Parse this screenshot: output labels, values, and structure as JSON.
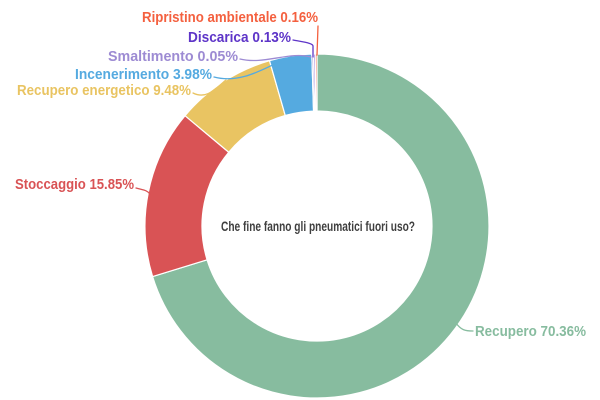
{
  "chart_data": {
    "type": "pie",
    "subtype": "donut",
    "title": "Che fine fanno gli pneumatici fuori uso?",
    "center_text": "Che fine fanno gli pneumatici fuori uso?",
    "center_text_color": "#3f3f3f",
    "background_color": "#ffffff",
    "direction": "clockwise",
    "start_angle_deg": 0,
    "legend_position": "outside-callout-labels",
    "slices": [
      {
        "label": "Recupero",
        "value": 70.36,
        "display": "Recupero 70.36%",
        "color": "#87BC9F"
      },
      {
        "label": "Stoccaggio",
        "value": 15.85,
        "display": "Stoccaggio 15.85%",
        "color": "#D95355"
      },
      {
        "label": "Recupero energetico",
        "value": 9.48,
        "display": "Recupero energetico 9.48%",
        "color": "#E9C462"
      },
      {
        "label": "Incenerimento",
        "value": 3.98,
        "display": "Incenerimento 3.98%",
        "color": "#55AAE0"
      },
      {
        "label": "Smaltimento",
        "value": 0.05,
        "display": "Smaltimento 0.05%",
        "color": "#9D8BD3"
      },
      {
        "label": "Discarica",
        "value": 0.13,
        "display": "Discarica 0.13%",
        "color": "#5E35C8"
      },
      {
        "label": "Ripristino ambientale",
        "value": 0.16,
        "display": "Ripristino ambientale 0.16%",
        "color": "#F4603F"
      }
    ]
  }
}
